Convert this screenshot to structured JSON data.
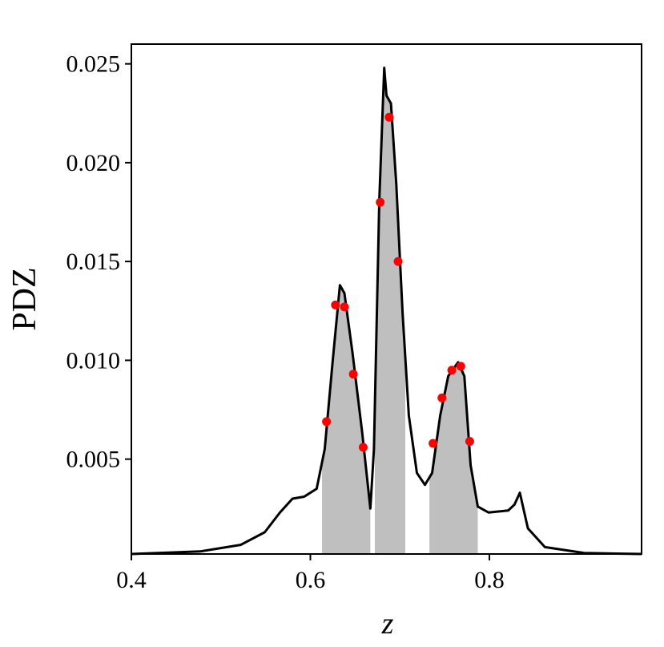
{
  "chart_data": {
    "type": "line",
    "xlabel": "z",
    "ylabel": "PDZ",
    "xlim": [
      0.4,
      0.97
    ],
    "ylim": [
      0.0002,
      0.026
    ],
    "xticks": [
      0.4,
      0.6,
      0.8
    ],
    "yticks": [
      0.005,
      {
        "value": 0.01,
        "label": "0.010"
      },
      0.015,
      {
        "value": 0.02,
        "label": "0.020"
      },
      0.025
    ],
    "x": [
      0.4,
      0.477,
      0.522,
      0.549,
      0.566,
      0.58,
      0.593,
      0.607,
      0.616,
      0.625,
      0.633,
      0.638,
      0.647,
      0.658,
      0.667,
      0.671,
      0.677,
      0.6825,
      0.685,
      0.69,
      0.696,
      0.703,
      0.71,
      0.719,
      0.728,
      0.736,
      0.745,
      0.754,
      0.765,
      0.772,
      0.779,
      0.787,
      0.799,
      0.821,
      0.828,
      0.834,
      0.843,
      0.862,
      0.906,
      0.97
    ],
    "series": [
      {
        "color": "#000000",
        "values": [
          0.0002,
          0.00033,
          0.00066,
          0.0013,
          0.0023,
          0.003,
          0.0031,
          0.0035,
          0.0055,
          0.01,
          0.0138,
          0.0134,
          0.0104,
          0.0063,
          0.0025,
          0.0055,
          0.0181,
          0.0248,
          0.0234,
          0.023,
          0.0189,
          0.0124,
          0.0072,
          0.0043,
          0.0037,
          0.0043,
          0.0072,
          0.0092,
          0.0099,
          0.0092,
          0.0047,
          0.0026,
          0.0023,
          0.0024,
          0.0027,
          0.0033,
          0.0015,
          0.00055,
          0.00025,
          0.0002
        ]
      }
    ],
    "points": {
      "color": "#ff0000",
      "x": [
        0.618,
        0.628,
        0.638,
        0.648,
        0.659,
        0.678,
        0.688,
        0.698,
        0.737,
        0.747,
        0.758,
        0.768,
        0.778
      ],
      "y": [
        0.0069,
        0.0128,
        0.0127,
        0.0093,
        0.0056,
        0.018,
        0.0223,
        0.015,
        0.0058,
        0.0081,
        0.0095,
        0.0097,
        0.0059
      ]
    },
    "shaded": {
      "color": "#bfbfbf",
      "ranges": [
        [
          0.613,
          0.667
        ],
        [
          0.672,
          0.706
        ],
        [
          0.733,
          0.787
        ]
      ]
    }
  }
}
